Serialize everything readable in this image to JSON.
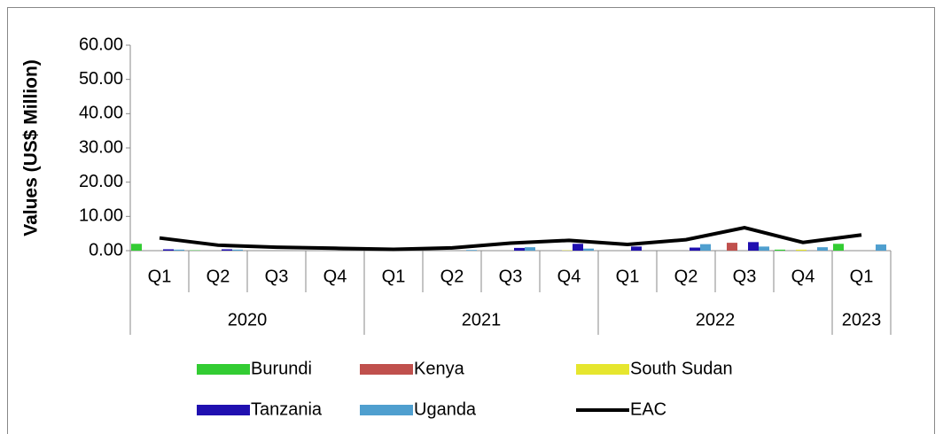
{
  "chart_data": {
    "type": "bar",
    "y_label": "Values (US$ Million)",
    "categories": [
      "Q1",
      "Q2",
      "Q3",
      "Q4",
      "Q1",
      "Q2",
      "Q3",
      "Q4",
      "Q1",
      "Q2",
      "Q3",
      "Q4",
      "Q1"
    ],
    "groups": [
      {
        "label": "2020",
        "size": 4
      },
      {
        "label": "2021",
        "size": 4
      },
      {
        "label": "2022",
        "size": 4
      },
      {
        "label": "2023",
        "size": 1
      }
    ],
    "ylim": [
      0,
      60
    ],
    "yticks": [
      {
        "value": 0,
        "label": "0.00"
      },
      {
        "value": 10,
        "label": "10.00"
      },
      {
        "value": 20,
        "label": "20.00"
      },
      {
        "value": 30,
        "label": "30.00"
      },
      {
        "value": 40,
        "label": "40.00"
      },
      {
        "value": 50,
        "label": "50.00"
      },
      {
        "value": 60,
        "label": "60.00"
      }
    ],
    "series": [
      {
        "name": "Burundi",
        "type": "bar",
        "color": "#33cc33",
        "values": [
          2.0,
          0.1,
          0,
          0,
          0,
          0,
          0,
          0,
          0,
          0,
          0,
          0.3,
          2.0
        ]
      },
      {
        "name": "Kenya",
        "type": "bar",
        "color": "#c0504d",
        "values": [
          0,
          0,
          0,
          0,
          0,
          0,
          0,
          0,
          0,
          0,
          2.3,
          0,
          0
        ]
      },
      {
        "name": "South Sudan",
        "type": "bar",
        "color": "#e6e62e",
        "values": [
          0,
          0,
          0,
          0,
          0,
          0,
          0,
          0.1,
          0,
          0,
          0,
          0.3,
          0
        ]
      },
      {
        "name": "Tanzania",
        "type": "bar",
        "color": "#2010b0",
        "values": [
          0.4,
          0.4,
          0,
          0,
          0,
          0,
          0.8,
          2.0,
          1.2,
          0.9,
          2.5,
          0,
          0
        ]
      },
      {
        "name": "Uganda",
        "type": "bar",
        "color": "#4f9fcf",
        "values": [
          0.3,
          0.3,
          0,
          0,
          0,
          0.2,
          1.0,
          0.6,
          0,
          1.9,
          1.2,
          1.0,
          1.8
        ]
      },
      {
        "name": "EAC",
        "type": "line",
        "color": "#000000",
        "values": [
          3.7,
          1.6,
          1.0,
          0.7,
          0.4,
          0.8,
          2.2,
          3.0,
          1.8,
          3.2,
          6.7,
          2.4,
          4.6
        ]
      }
    ]
  }
}
